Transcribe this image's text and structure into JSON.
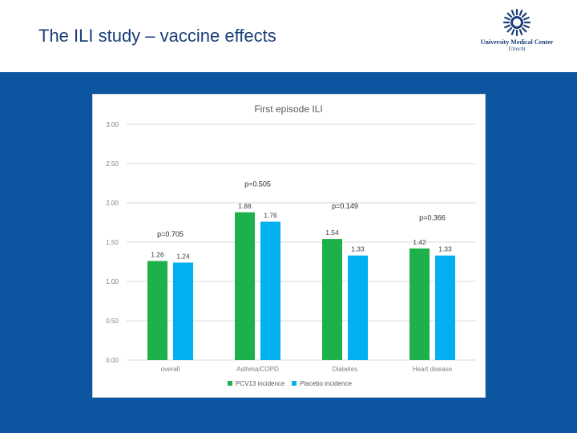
{
  "slide": {
    "title": "The ILI study – vaccine effects"
  },
  "logo": {
    "name": "University Medical Center",
    "city": "Utrecht",
    "icon": "umc-sun-icon",
    "color": "#1b3f7a"
  },
  "colors": {
    "band": "#0c55a0",
    "series1": "#1db04b",
    "series2": "#00b0f0"
  },
  "chart_data": {
    "type": "bar",
    "title": "First episode ILI",
    "categories": [
      "overall",
      "Asthma/COPD",
      "Diabetes",
      "Heart disease"
    ],
    "series": [
      {
        "name": "PCV13 incidence",
        "values": [
          1.26,
          1.88,
          1.54,
          1.42
        ],
        "labels": [
          "1.26",
          "1.88",
          "1.54",
          "1.42"
        ]
      },
      {
        "name": "Placebo incidence",
        "values": [
          1.24,
          1.76,
          1.33,
          1.33
        ],
        "labels": [
          "1.24",
          "1.76",
          "1.33",
          "1.33"
        ]
      }
    ],
    "annotations": [
      "p=0.705",
      "p=0.505",
      "p=0.149",
      "p=0.366"
    ],
    "annotation_levels": [
      1.6,
      2.24,
      1.96,
      1.81
    ],
    "ylim": [
      0,
      3
    ],
    "yticks": [
      "0.00",
      "0.50",
      "1.00",
      "1.50",
      "2.00",
      "2.50",
      "3.00"
    ],
    "grid": true,
    "legend": "bottom",
    "xlabel": "",
    "ylabel": ""
  }
}
